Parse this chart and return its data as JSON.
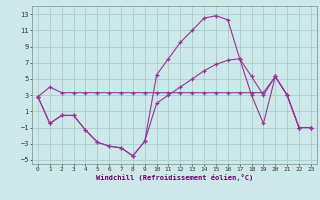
{
  "xlabel": "Windchill (Refroidissement éolien,°C)",
  "bg_color": "#cce8e8",
  "grid_color": "#aacccc",
  "line_color": "#993399",
  "xlim": [
    -0.5,
    23.5
  ],
  "ylim": [
    -5.5,
    14.0
  ],
  "yticks": [
    -5,
    -3,
    -1,
    1,
    3,
    5,
    7,
    9,
    11,
    13
  ],
  "xticks": [
    0,
    1,
    2,
    3,
    4,
    5,
    6,
    7,
    8,
    9,
    10,
    11,
    12,
    13,
    14,
    15,
    16,
    17,
    18,
    19,
    20,
    21,
    22,
    23
  ],
  "line1_x": [
    0,
    1,
    2,
    3,
    4,
    5,
    6,
    7,
    8,
    9,
    10,
    11,
    12,
    13,
    14,
    15,
    16,
    17,
    18,
    19,
    20,
    21,
    22,
    23
  ],
  "line1_y": [
    2.8,
    4.0,
    3.3,
    3.3,
    3.3,
    3.3,
    3.3,
    3.3,
    3.3,
    3.3,
    3.3,
    3.3,
    3.3,
    3.3,
    3.3,
    3.3,
    3.3,
    3.3,
    3.3,
    3.3,
    5.3,
    3.0,
    -1.0,
    -1.0
  ],
  "line2_x": [
    0,
    1,
    2,
    3,
    4,
    5,
    6,
    7,
    8,
    9,
    10,
    11,
    12,
    13,
    14,
    15,
    16,
    17,
    18,
    19,
    20,
    21,
    22,
    23
  ],
  "line2_y": [
    2.8,
    -0.5,
    0.5,
    0.5,
    -1.3,
    -2.8,
    -3.3,
    -3.5,
    -4.5,
    -2.7,
    5.5,
    7.5,
    9.5,
    11.0,
    12.5,
    12.8,
    12.3,
    7.5,
    3.0,
    -0.5,
    5.3,
    3.0,
    -1.0,
    -1.0
  ],
  "line3_x": [
    0,
    1,
    2,
    3,
    4,
    5,
    6,
    7,
    8,
    9,
    10,
    11,
    12,
    13,
    14,
    15,
    16,
    17,
    18,
    19,
    20,
    21,
    22,
    23
  ],
  "line3_y": [
    2.8,
    -0.5,
    0.5,
    0.5,
    -1.3,
    -2.8,
    -3.3,
    -3.5,
    -4.5,
    -2.7,
    2.0,
    3.0,
    4.0,
    5.0,
    6.0,
    6.8,
    7.3,
    7.5,
    5.3,
    3.0,
    5.3,
    3.0,
    -1.0,
    -1.0
  ]
}
